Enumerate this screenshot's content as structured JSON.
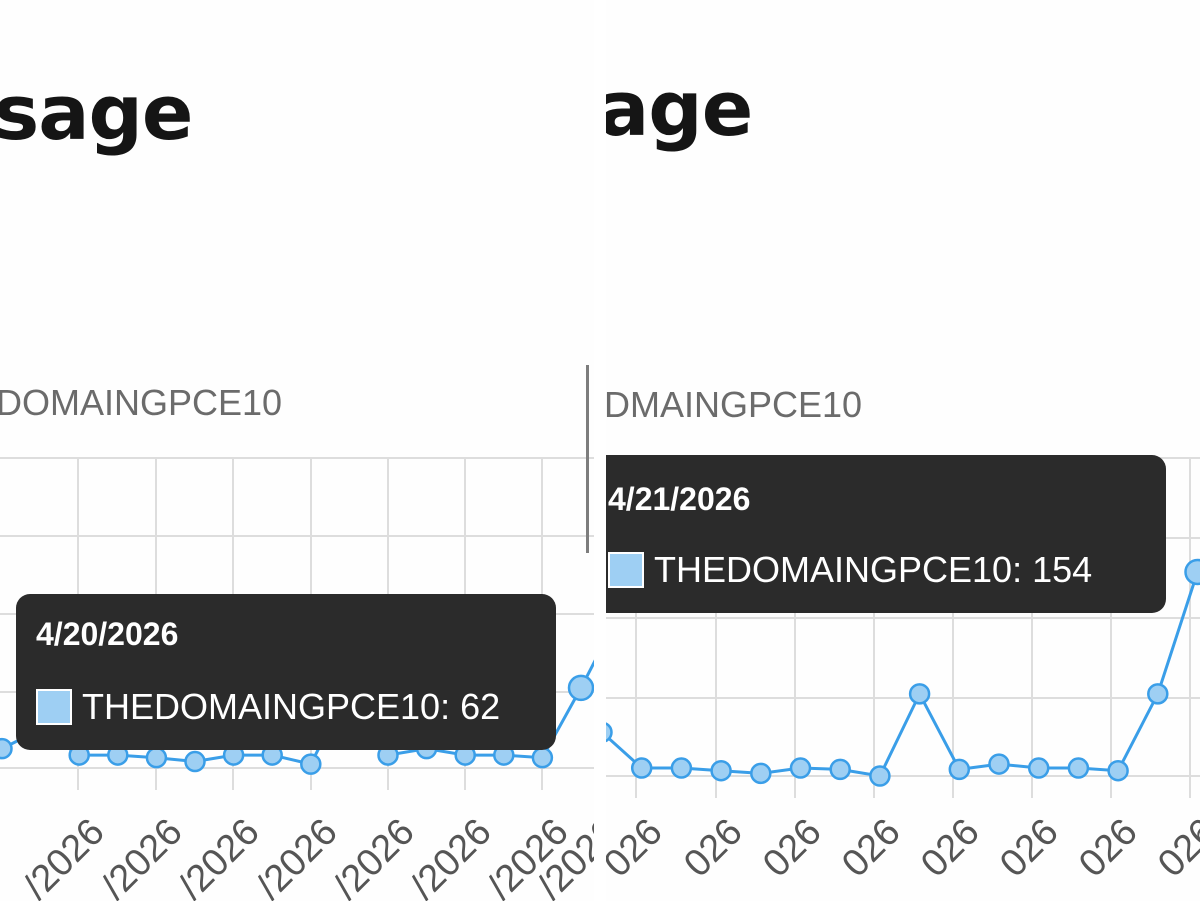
{
  "panels": [
    {
      "id": "left",
      "heading_fragment": "sage",
      "series_title_fragment": "DOMAINGPCE10",
      "tooltip": {
        "date": "4/20/2026",
        "series": "THEDOMAINGPCE10",
        "value": "62"
      },
      "x_tick_fragment": "/2026"
    },
    {
      "id": "right",
      "heading_fragment": "age",
      "series_title_fragment": "DMAINGPCE10",
      "tooltip": {
        "date": "4/21/2026",
        "series": "THEDOMAINGPCE10",
        "value": "154"
      },
      "x_tick_fragment": "026"
    }
  ],
  "colors": {
    "line": "#3a9ee8",
    "marker_fill": "#9ecff3",
    "grid": "#dddddd",
    "tooltip_bg": "#2b2b2b"
  },
  "chart_data": [
    {
      "type": "line",
      "series": [
        {
          "name": "THEDOMAINGPCE10",
          "values": [
            15,
            30,
            10,
            10,
            8,
            5,
            10,
            10,
            3,
            62,
            10,
            15,
            10,
            10,
            8,
            62,
            120
          ]
        }
      ],
      "ylim": [
        0,
        240
      ],
      "grid": true,
      "highlighted_point": {
        "date": "4/20/2026",
        "value": 62
      }
    },
    {
      "type": "line",
      "series": [
        {
          "name": "THEDOMAINGPCE10",
          "values": [
            33,
            6,
            6,
            4,
            2,
            6,
            5,
            0,
            62,
            5,
            9,
            6,
            6,
            4,
            62,
            154
          ]
        }
      ],
      "ylim": [
        0,
        240
      ],
      "grid": true,
      "highlighted_point": {
        "date": "4/21/2026",
        "value": 154
      }
    }
  ]
}
